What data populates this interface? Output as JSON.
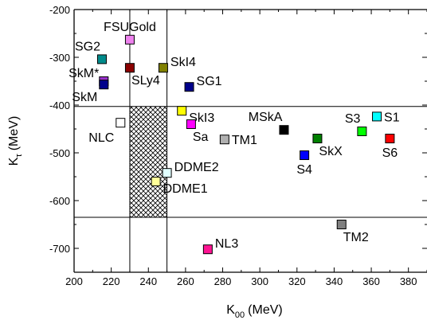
{
  "chart_data": {
    "type": "scatter",
    "xlabel": "K",
    "xlabel_sub": "00",
    "xlabel_unit": "(MeV)",
    "ylabel": "K",
    "ylabel_sub": "τ",
    "ylabel_unit": "(MeV)",
    "xlim": [
      200,
      390
    ],
    "ylim": [
      -750,
      -200
    ],
    "xticks": [
      200,
      220,
      240,
      260,
      280,
      300,
      320,
      340,
      360,
      380
    ],
    "yticks": [
      -200,
      -300,
      -400,
      -500,
      -600,
      -700
    ],
    "horizontal_lines": [
      -403,
      -635
    ],
    "vertical_lines": [
      230,
      250
    ],
    "hatched_region": {
      "x": [
        230,
        250
      ],
      "y": [
        -635,
        -403
      ]
    },
    "points": [
      {
        "label": "FSUGold",
        "x": 230,
        "y": -263,
        "color": "#ee82ee",
        "label_pos": "above"
      },
      {
        "label": "SG2",
        "x": 215,
        "y": -304,
        "color": "#008b8b",
        "label_pos": "above-left"
      },
      {
        "label": "SkM*",
        "x": 216,
        "y": -350,
        "color": "#9932cc",
        "label_pos": "above-left"
      },
      {
        "label": "SkM",
        "x": 216,
        "y": -357,
        "color": "#00008b",
        "label_pos": "below-left"
      },
      {
        "label": "SLy4",
        "x": 230,
        "y": -322,
        "color": "#8b0000",
        "label_pos": "below-right"
      },
      {
        "label": "SkI4",
        "x": 248,
        "y": -322,
        "color": "#808000",
        "label_pos": "right-up"
      },
      {
        "label": "SG1",
        "x": 262,
        "y": -362,
        "color": "#00008b",
        "label_pos": "right-up"
      },
      {
        "label": "SkI3",
        "x": 258,
        "y": -412,
        "color": "#ffff00",
        "label_pos": "right-down"
      },
      {
        "label": "Sa",
        "x": 263,
        "y": -440,
        "color": "#ff00ff",
        "label_pos": "below-right"
      },
      {
        "label": "NLC",
        "x": 225,
        "y": -437,
        "color": "#ffffff",
        "label_pos": "below-left"
      },
      {
        "label": "TM1",
        "x": 281,
        "y": -472,
        "color": "#b0b0b0",
        "label_pos": "right"
      },
      {
        "label": "MSkA",
        "x": 313,
        "y": -452,
        "color": "#000000",
        "label_pos": "above-left"
      },
      {
        "label": "SkX",
        "x": 331,
        "y": -470,
        "color": "#008000",
        "label_pos": "below-right"
      },
      {
        "label": "S4",
        "x": 324,
        "y": -505,
        "color": "#0000ff",
        "label_pos": "below"
      },
      {
        "label": "S3",
        "x": 355,
        "y": -455,
        "color": "#00ff00",
        "label_pos": "above-left"
      },
      {
        "label": "S1",
        "x": 363,
        "y": -424,
        "color": "#00ffff",
        "label_pos": "right"
      },
      {
        "label": "S6",
        "x": 370,
        "y": -470,
        "color": "#ff0000",
        "label_pos": "below"
      },
      {
        "label": "DDME2",
        "x": 250,
        "y": -542,
        "color": "#e0ffff",
        "label_pos": "right-up"
      },
      {
        "label": "DDME1",
        "x": 244,
        "y": -560,
        "color": "#ffff99",
        "label_pos": "right-down"
      },
      {
        "label": "TM2",
        "x": 344,
        "y": -650,
        "color": "#808080",
        "label_pos": "below-right"
      },
      {
        "label": "NL3",
        "x": 272,
        "y": -702,
        "color": "#ff1493",
        "label_pos": "right-up"
      }
    ]
  }
}
